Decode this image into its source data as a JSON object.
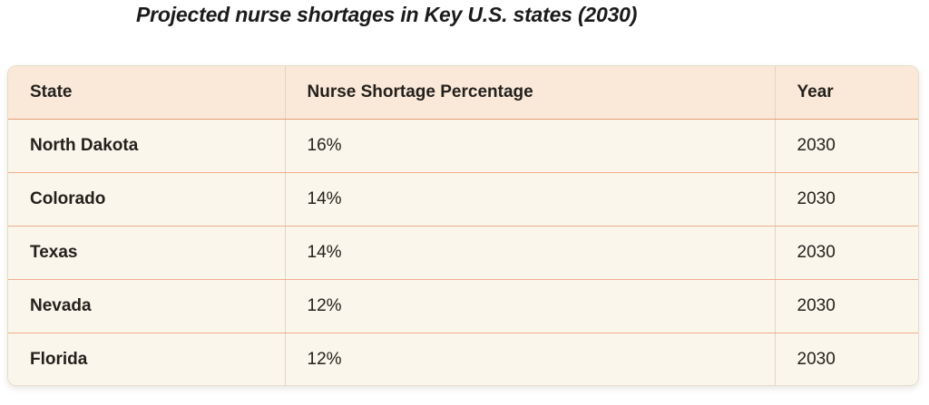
{
  "title": "Projected nurse shortages in Key U.S. states (2030)",
  "colors": {
    "page_bg": "#ffffff",
    "title_text": "#1b1b1b",
    "header_bg": "#fae9d9",
    "row_bg": "#faf6eb",
    "header_rule": "#e69c74",
    "row_rule": "#efae8d",
    "column_rule": "#e0d6c4",
    "table_border": "#e8dccc",
    "cell_text": "#24211d"
  },
  "chart_data": {
    "type": "table",
    "title": "Projected nurse shortages in Key U.S. states (2030)",
    "columns": [
      "State",
      "Nurse Shortage Percentage",
      "Year"
    ],
    "rows": [
      [
        "North Dakota",
        "16%",
        "2030"
      ],
      [
        "Colorado",
        "14%",
        "2030"
      ],
      [
        "Texas",
        "14%",
        "2030"
      ],
      [
        "Nevada",
        "12%",
        "2030"
      ],
      [
        "Florida",
        "12%",
        "2030"
      ]
    ],
    "shortage_values_percent": [
      16,
      14,
      14,
      12,
      12
    ],
    "year": 2030
  }
}
